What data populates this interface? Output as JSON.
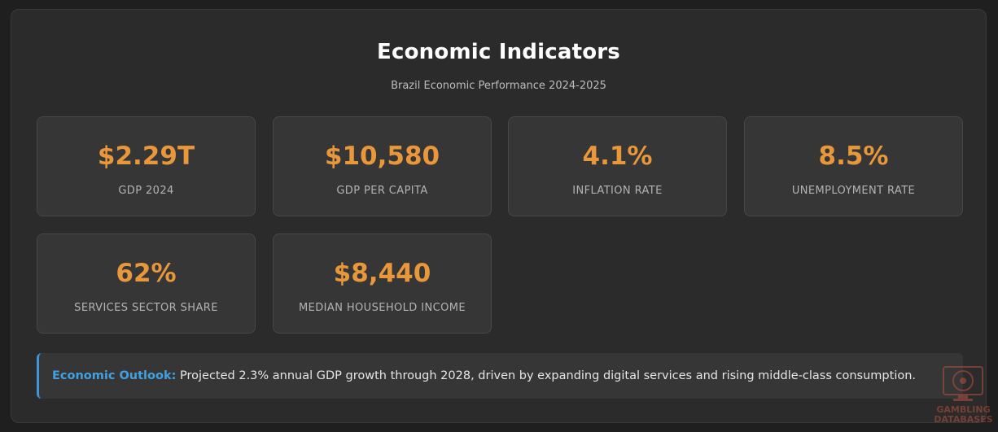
{
  "header": {
    "title": "Economic Indicators",
    "subtitle": "Brazil Economic Performance 2024-2025"
  },
  "indicators": [
    {
      "value": "$2.29T",
      "label": "GDP 2024"
    },
    {
      "value": "$10,580",
      "label": "GDP PER CAPITA"
    },
    {
      "value": "4.1%",
      "label": "INFLATION RATE"
    },
    {
      "value": "8.5%",
      "label": "UNEMPLOYMENT RATE"
    },
    {
      "value": "62%",
      "label": "SERVICES SECTOR SHARE"
    },
    {
      "value": "$8,440",
      "label": "MEDIAN HOUSEHOLD INCOME"
    }
  ],
  "outlook": {
    "lead": "Economic Outlook:",
    "text": " Projected 2.3% annual GDP growth through 2028, driven by expanding digital services and rising middle-class consumption."
  },
  "watermark": {
    "line1": "GAMBLING",
    "line2": "DATABASES"
  },
  "colors": {
    "accent_value": "#e8983a",
    "outlook_border": "#3f95d6",
    "outlook_lead": "#43a0e0"
  }
}
